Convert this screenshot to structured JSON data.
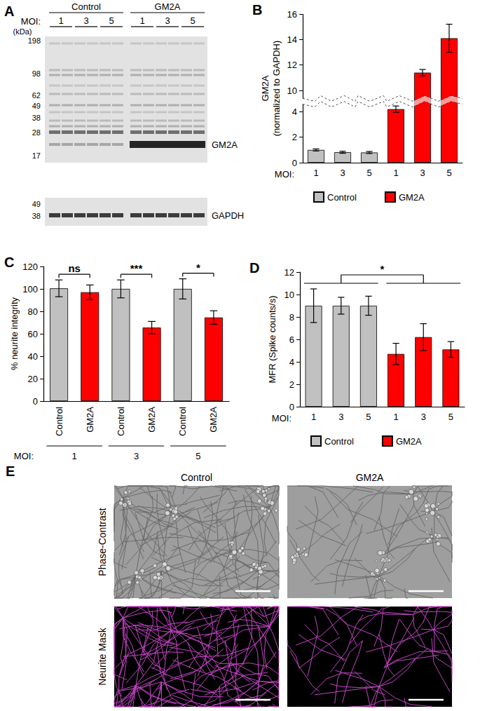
{
  "blot": {
    "title": "A",
    "groups": [
      "Control",
      "GM2A"
    ],
    "moi_label": "MOI:",
    "moi": [
      "1",
      "3",
      "5",
      "1",
      "3",
      "5"
    ],
    "unit": "(kDa)",
    "markers": [
      198,
      98,
      62,
      49,
      38,
      28,
      17
    ],
    "band": "GM2A",
    "loading_markers": [
      49,
      38
    ],
    "loading": "GAPDH"
  },
  "chart_data": [
    {
      "type": "bar",
      "title": "B",
      "ylabel": "GM2A\n(normalized to GAPDH)",
      "xlabel": "MOI:",
      "categories": [
        "1",
        "3",
        "5",
        "1",
        "3",
        "5"
      ],
      "series": [
        {
          "name": "Control",
          "color": "#c0c0c0",
          "values": [
            1.0,
            0.82,
            0.8,
            null,
            null,
            null
          ],
          "errors": [
            0.08,
            0.08,
            0.08,
            null,
            null,
            null
          ]
        },
        {
          "name": "GM2A",
          "color": "#ff0000",
          "values": [
            null,
            null,
            null,
            4.2,
            11.4,
            14.1
          ],
          "errors": [
            null,
            null,
            null,
            0.25,
            0.25,
            1.1
          ]
        }
      ],
      "ylim": [
        0,
        16
      ],
      "yticks": [
        0,
        2,
        4,
        10,
        12,
        14,
        16
      ],
      "ybreak": [
        4.6,
        9.4
      ],
      "legend": "bottom",
      "grid": false
    },
    {
      "type": "bar",
      "title": "C",
      "ylabel": "% neurite integrity",
      "categories": [
        "Control",
        "GM2A",
        "Control",
        "GM2A",
        "Control",
        "GM2A"
      ],
      "values": [
        100.5,
        97,
        100,
        65.5,
        100,
        74.5
      ],
      "errors": [
        7.5,
        6.5,
        8,
        5.5,
        9,
        6
      ],
      "colors": [
        "#c0c0c0",
        "#ff0000",
        "#c0c0c0",
        "#ff0000",
        "#c0c0c0",
        "#ff0000"
      ],
      "ylim": [
        0,
        120
      ],
      "yticks": [
        0,
        20,
        40,
        60,
        80,
        100,
        120
      ],
      "groups": {
        "label": "MOI:",
        "items": [
          {
            "label": "1",
            "from": 0,
            "to": 1
          },
          {
            "label": "3",
            "from": 2,
            "to": 3
          },
          {
            "label": "5",
            "from": 4,
            "to": 5
          }
        ]
      },
      "comparisons": [
        {
          "from": 0,
          "to": 1,
          "label": "ns"
        },
        {
          "from": 2,
          "to": 3,
          "label": "***"
        },
        {
          "from": 4,
          "to": 5,
          "label": "*"
        }
      ],
      "grid": false
    },
    {
      "type": "bar",
      "title": "D",
      "ylabel": "MFR (Spike counts/s)",
      "xlabel": "MOI:",
      "categories": [
        "1",
        "3",
        "5",
        "1",
        "3",
        "5"
      ],
      "series": [
        {
          "name": "Control",
          "color": "#c0c0c0",
          "values": [
            9.0,
            9.0,
            9.0,
            null,
            null,
            null
          ],
          "errors": [
            1.5,
            0.75,
            0.85,
            null,
            null,
            null
          ]
        },
        {
          "name": "GM2A",
          "color": "#ff0000",
          "values": [
            null,
            null,
            null,
            4.7,
            6.2,
            5.1
          ],
          "errors": [
            null,
            null,
            null,
            0.95,
            1.2,
            0.7
          ]
        }
      ],
      "ylim": [
        0,
        12
      ],
      "yticks": [
        0,
        2,
        4,
        6,
        8,
        10,
        12
      ],
      "comparisons": [
        {
          "from": [
            0,
            2
          ],
          "to": [
            3,
            5
          ],
          "label": "*"
        }
      ],
      "legend": "bottom",
      "grid": false
    }
  ],
  "micrographs": {
    "title": "E",
    "columns": [
      "Control",
      "GM2A"
    ],
    "rows": [
      "Phase-Contrast",
      "Neurite Mask"
    ]
  }
}
